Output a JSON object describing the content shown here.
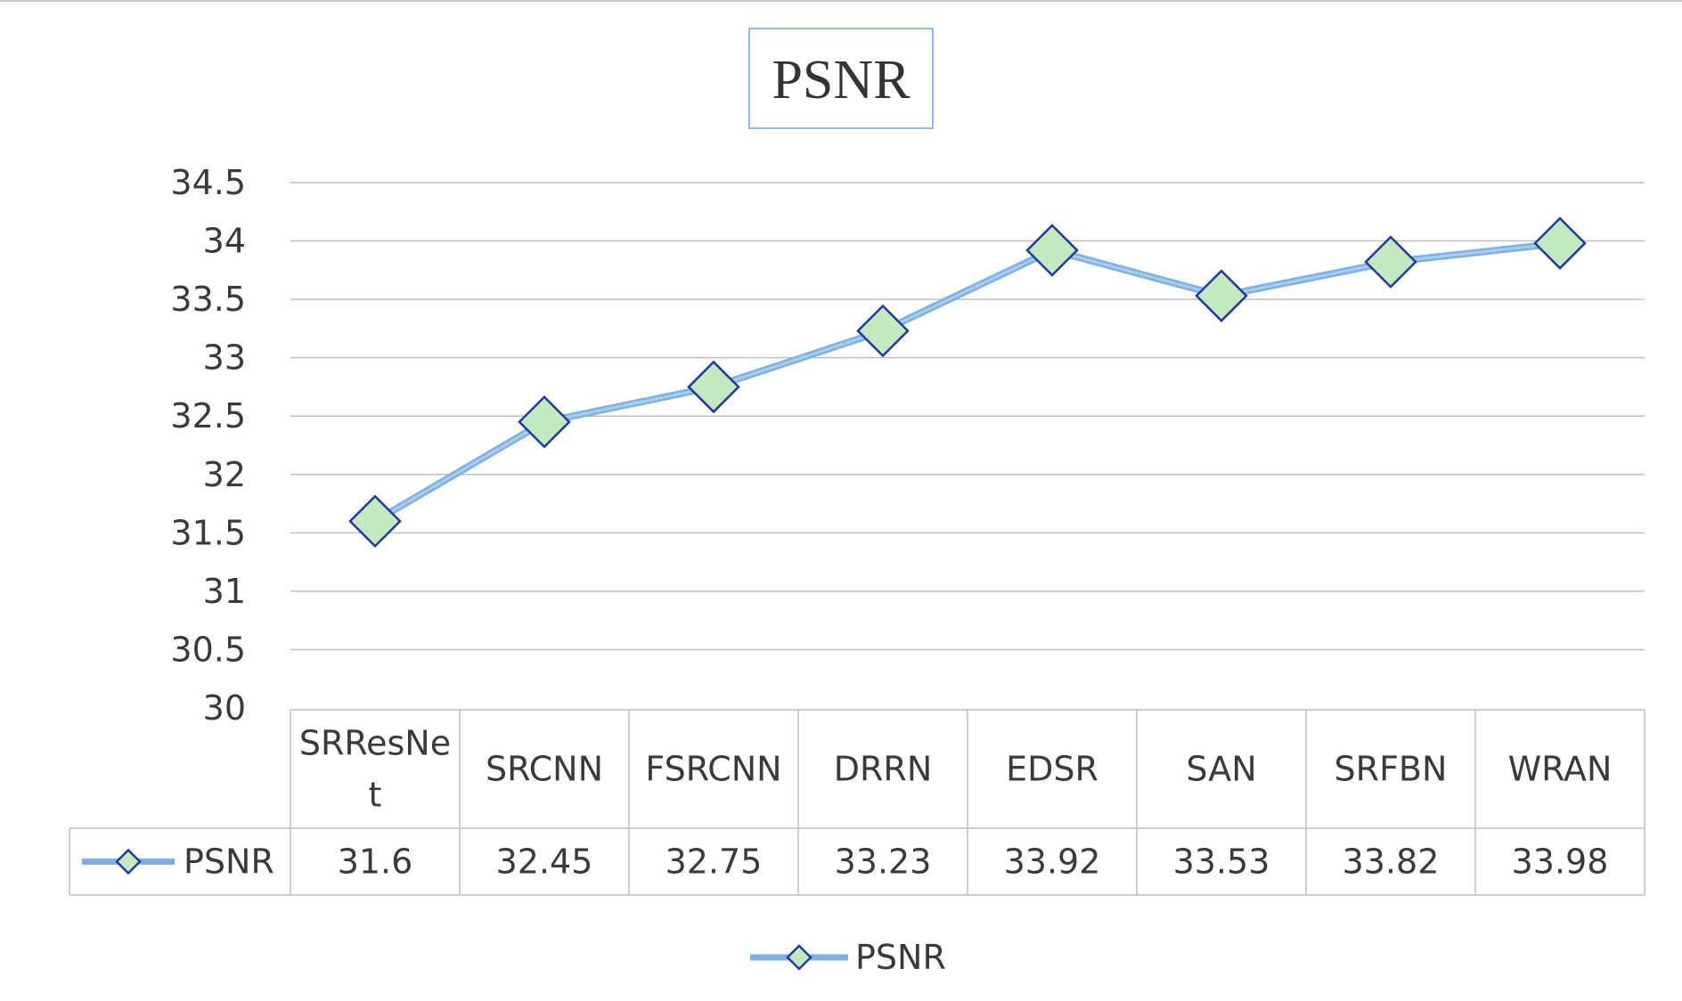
{
  "chart_data": {
    "type": "line",
    "title": "PSNR",
    "xlabel": "",
    "ylabel": "",
    "categories": [
      "SRResNet",
      "SRCNN",
      "FSRCNN",
      "DRRN",
      "EDSR",
      "SAN",
      "SRFBN",
      "WRAN"
    ],
    "category_lines": [
      [
        "SRResNe",
        "t"
      ],
      [
        "SRCNN"
      ],
      [
        "FSRCNN"
      ],
      [
        "DRRN"
      ],
      [
        "EDSR"
      ],
      [
        "SAN"
      ],
      [
        "SRFBN"
      ],
      [
        "WRAN"
      ]
    ],
    "series": [
      {
        "name": "PSNR",
        "values": [
          31.6,
          32.45,
          32.75,
          33.23,
          33.92,
          33.53,
          33.82,
          33.98
        ],
        "value_labels": [
          "31.6",
          "32.45",
          "32.75",
          "33.23",
          "33.92",
          "33.53",
          "33.82",
          "33.98"
        ]
      }
    ],
    "ylim": [
      30,
      34.5
    ],
    "yticks": [
      "30",
      "30.5",
      "31",
      "31.5",
      "32",
      "32.5",
      "33",
      "33.5",
      "34",
      "34.5"
    ],
    "grid": true,
    "data_table": true,
    "legend": "bottom-center",
    "colors": {
      "line": "#7eb0e2",
      "marker_fill": "#c4e8bf",
      "marker_stroke": "#1f3a9c",
      "grid": "#bfbfbf",
      "text": "#3a3a3a",
      "title_border": "#8fbbe6"
    }
  }
}
